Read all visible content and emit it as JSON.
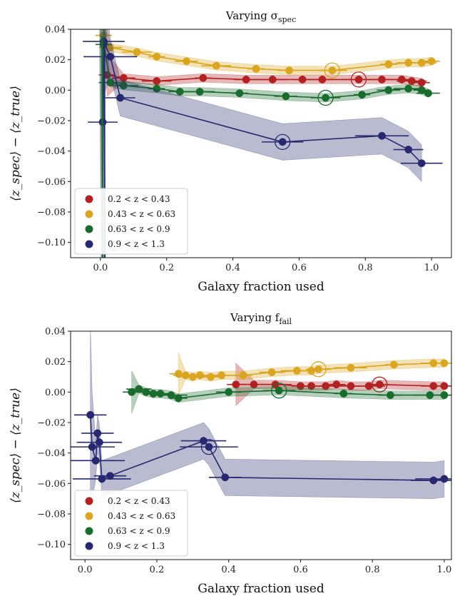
{
  "chart_data": [
    {
      "type": "line",
      "title_main": "Varying σ",
      "title_sub": "spec",
      "xlabel": "Galaxy fraction used",
      "ylabel": "⟨z_spec⟩ − ⟨z_true⟩",
      "xlim": [
        -0.09,
        1.06
      ],
      "ylim": [
        -0.11,
        0.04
      ],
      "xticks": [
        0.0,
        0.2,
        0.4,
        0.6,
        0.8,
        1.0
      ],
      "xtick_labels": [
        "0.0",
        "0.2",
        "0.4",
        "0.6",
        "0.8",
        "1.0"
      ],
      "yticks": [
        0.04,
        0.02,
        0.0,
        -0.02,
        -0.04,
        -0.06,
        -0.08,
        -0.1
      ],
      "ytick_labels": [
        "0.04",
        "0.02",
        "0.00",
        "−0.02",
        "−0.04",
        "−0.06",
        "−0.08",
        "−0.10"
      ],
      "legend_position": "lower-left",
      "series": [
        {
          "name": "0.2 < z < 0.43",
          "color": "#b22222",
          "x": [
            0.02,
            0.07,
            0.17,
            0.31,
            0.44,
            0.52,
            0.61,
            0.67,
            0.78,
            0.85,
            0.91,
            0.94,
            0.97
          ],
          "y": [
            0.01,
            0.008,
            0.006,
            0.008,
            0.007,
            0.007,
            0.007,
            0.007,
            0.007,
            0.007,
            0.007,
            0.006,
            0.005
          ],
          "circled_index": 8
        },
        {
          "name": "0.43 < z < 0.63",
          "color": "#daa520",
          "x": [
            0.01,
            0.03,
            0.11,
            0.17,
            0.26,
            0.35,
            0.47,
            0.57,
            0.7,
            0.87,
            0.93,
            0.97,
            1.0
          ],
          "y": [
            0.036,
            0.028,
            0.025,
            0.022,
            0.019,
            0.016,
            0.014,
            0.013,
            0.013,
            0.017,
            0.018,
            0.018,
            0.019
          ],
          "circled_index": 8
        },
        {
          "name": "0.63 < z < 0.9",
          "color": "#1a6b2e",
          "x": [
            0.01,
            0.03,
            0.07,
            0.17,
            0.24,
            0.3,
            0.42,
            0.56,
            0.68,
            0.79,
            0.87,
            0.93,
            0.97,
            0.99
          ],
          "y": [
            0.03,
            0.005,
            0.003,
            0.001,
            -0.001,
            -0.001,
            -0.002,
            -0.004,
            -0.005,
            -0.003,
            0.0,
            0.001,
            0.0,
            -0.002
          ],
          "circled_index": 8
        },
        {
          "name": "0.9 < z < 1.3",
          "color": "#27286f",
          "x": [
            0.007,
            0.01,
            0.03,
            0.06,
            0.55,
            0.85,
            0.93,
            0.97
          ],
          "y": [
            -0.021,
            0.032,
            0.022,
            -0.005,
            -0.034,
            -0.03,
            -0.039,
            -0.048
          ],
          "circled_index": 4
        }
      ]
    },
    {
      "type": "line",
      "title_main": "Varying f",
      "title_sub": "fail",
      "xlabel": "Galaxy fraction used",
      "ylabel": "⟨z_spec⟩ − ⟨z_true⟩",
      "xlim": [
        -0.04,
        1.02
      ],
      "ylim": [
        -0.11,
        0.04
      ],
      "xticks": [
        0.0,
        0.2,
        0.4,
        0.6,
        0.8,
        1.0
      ],
      "xtick_labels": [
        "0.0",
        "0.2",
        "0.4",
        "0.6",
        "0.8",
        "1.0"
      ],
      "yticks": [
        0.04,
        0.02,
        0.0,
        -0.02,
        -0.04,
        -0.06,
        -0.08,
        -0.1
      ],
      "ytick_labels": [
        "0.04",
        "0.02",
        "0.00",
        "−0.02",
        "−0.04",
        "−0.06",
        "−0.08",
        "−0.10"
      ],
      "legend_position": "lower-left",
      "series": [
        {
          "name": "0.2 < z < 0.43",
          "color": "#b22222",
          "x": [
            0.42,
            0.47,
            0.53,
            0.6,
            0.63,
            0.67,
            0.7,
            0.74,
            0.79,
            0.82,
            0.97,
            1.0
          ],
          "y": [
            0.005,
            0.005,
            0.005,
            0.004,
            0.004,
            0.004,
            0.005,
            0.004,
            0.004,
            0.005,
            0.004,
            0.004
          ],
          "circled_index": 9
        },
        {
          "name": "0.43 < z < 0.63",
          "color": "#daa520",
          "x": [
            0.26,
            0.28,
            0.3,
            0.32,
            0.35,
            0.38,
            0.44,
            0.52,
            0.59,
            0.63,
            0.65,
            0.74,
            0.86,
            0.97,
            1.0
          ],
          "y": [
            0.012,
            0.011,
            0.01,
            0.011,
            0.01,
            0.011,
            0.011,
            0.013,
            0.014,
            0.014,
            0.015,
            0.016,
            0.018,
            0.019,
            0.019
          ],
          "circled_index": 10
        },
        {
          "name": "0.63 < z < 0.9",
          "color": "#1a6b2e",
          "x": [
            0.13,
            0.15,
            0.17,
            0.19,
            0.21,
            0.24,
            0.26,
            0.4,
            0.54,
            0.72,
            0.85,
            0.96,
            1.0
          ],
          "y": [
            0.0,
            0.002,
            0.0,
            -0.001,
            -0.001,
            -0.002,
            -0.004,
            0.0,
            0.001,
            -0.001,
            -0.002,
            -0.002,
            -0.002
          ],
          "circled_index": 8
        },
        {
          "name": "0.9 < z < 1.3",
          "color": "#27286f",
          "x": [
            0.015,
            0.02,
            0.03,
            0.035,
            0.04,
            0.047,
            0.07,
            0.33,
            0.345,
            0.39,
            0.97,
            1.0
          ],
          "y": [
            -0.015,
            -0.036,
            -0.045,
            -0.027,
            -0.033,
            -0.057,
            -0.055,
            -0.032,
            -0.036,
            -0.056,
            -0.058,
            -0.057
          ],
          "circled_index": 8
        }
      ]
    }
  ]
}
